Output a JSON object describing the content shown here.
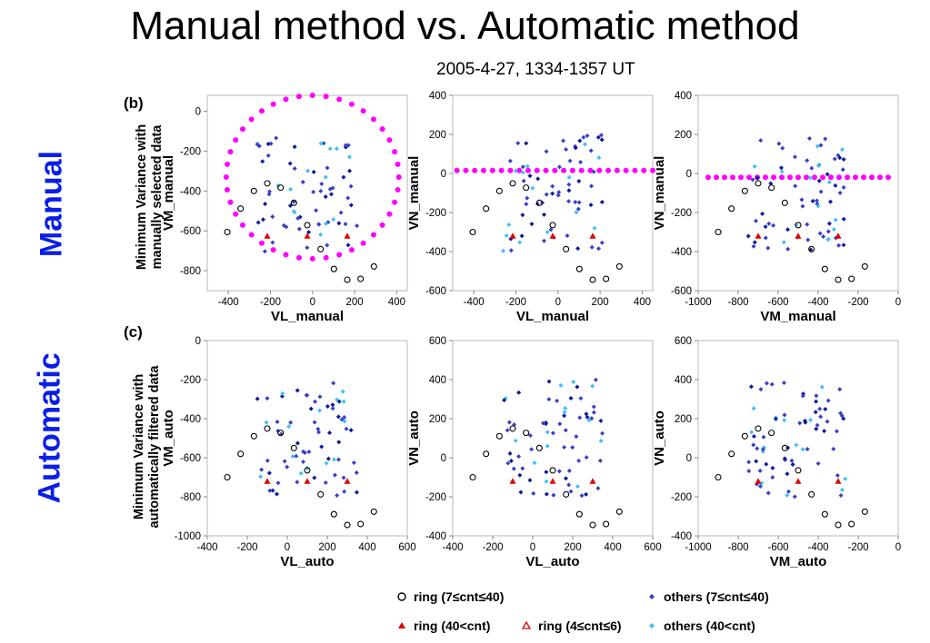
{
  "title": "Manual method  vs.  Automatic method",
  "subtitle": "2005-4-27, 1334-1357 UT",
  "rows": [
    {
      "label": "Manual",
      "letter": "(b)",
      "ylabel_line1": "Minimum Variance with",
      "ylabel_line2": "manually selected data"
    },
    {
      "label": "Automatic",
      "letter": "(c)",
      "ylabel_line1": "Minimum Variance with",
      "ylabel_line2": "automatically filtered data"
    }
  ],
  "legend": [
    {
      "label": "ring (7≤cnt≤40)",
      "symbol": "open-circle",
      "color": "#000000"
    },
    {
      "label": "others (7≤cnt≤40)",
      "symbol": "diamond",
      "color": "#3a3fc8"
    },
    {
      "label": "ring (40<cnt)",
      "symbol": "filled-triangle",
      "color": "#e00000"
    },
    {
      "label": "ring (4≤cnt≤6)",
      "symbol": "open-triangle",
      "color": "#e00000"
    },
    {
      "label": "others (40<cnt)",
      "symbol": "diamond",
      "color": "#40c0f0"
    }
  ],
  "colors": {
    "ring_circle": "#000000",
    "others_7_40": "#3a3fc8",
    "others_dark": "#0a1a9a",
    "others_40": "#40c0f0",
    "ring_40": "#e00000",
    "fit": "#ff00ff"
  },
  "chart_data": [
    {
      "type": "scatter",
      "xlabel": "VL_manual",
      "ylabel": "VM_manual",
      "xlim": [
        -500,
        450
      ],
      "ylim": [
        -900,
        80
      ],
      "xticks": [
        -400,
        -200,
        0,
        200,
        400
      ],
      "yticks": [
        0,
        -200,
        -400,
        -600,
        -800
      ],
      "fit": {
        "shape": "circle",
        "center": [
          0,
          -330
        ],
        "radius": 410
      }
    },
    {
      "type": "scatter",
      "xlabel": "VL_manual",
      "ylabel": "VN_manual",
      "xlim": [
        -500,
        450
      ],
      "ylim": [
        -600,
        400
      ],
      "xticks": [
        -400,
        -200,
        0,
        200,
        400
      ],
      "yticks": [
        400,
        200,
        0,
        -200,
        -400,
        -600
      ],
      "fit": {
        "shape": "line",
        "points": [
          [
            -480,
            15
          ],
          [
            450,
            15
          ]
        ]
      }
    },
    {
      "type": "scatter",
      "xlabel": "VM_manual",
      "ylabel": "VN_manual",
      "xlim": [
        -1000,
        0
      ],
      "ylim": [
        -600,
        400
      ],
      "xticks": [
        -1000,
        -800,
        -600,
        -400,
        -200,
        0
      ],
      "yticks": [
        400,
        200,
        0,
        -200,
        -400,
        -600
      ],
      "fit": {
        "shape": "line",
        "points": [
          [
            -950,
            -20
          ],
          [
            -50,
            -20
          ]
        ]
      }
    },
    {
      "type": "scatter",
      "xlabel": "VL_auto",
      "ylabel": "VM_auto",
      "xlim": [
        -400,
        600
      ],
      "ylim": [
        -1000,
        0
      ],
      "xticks": [
        -400,
        -200,
        0,
        200,
        400,
        600
      ],
      "yticks": [
        0,
        -200,
        -400,
        -600,
        -800,
        -1000
      ]
    },
    {
      "type": "scatter",
      "xlabel": "VL_auto",
      "ylabel": "VN_auto",
      "xlim": [
        -400,
        600
      ],
      "ylim": [
        -400,
        600
      ],
      "xticks": [
        -400,
        -200,
        0,
        200,
        400,
        600
      ],
      "yticks": [
        600,
        400,
        200,
        0,
        -200,
        -400
      ]
    },
    {
      "type": "scatter",
      "xlabel": "VM_auto",
      "ylabel": "VN_auto",
      "xlim": [
        -1000,
        0
      ],
      "ylim": [
        -400,
        600
      ],
      "xticks": [
        -1000,
        -800,
        -600,
        -400,
        -200,
        0
      ],
      "yticks": [
        600,
        400,
        200,
        0,
        -200,
        -400
      ]
    }
  ]
}
